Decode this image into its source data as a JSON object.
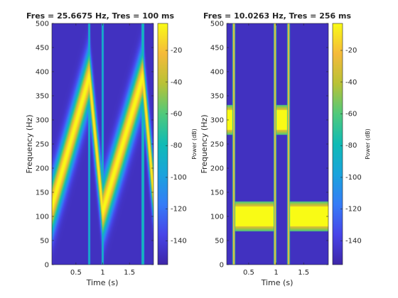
{
  "chart_data": [
    {
      "type": "heatmap",
      "title": "Fres = 25.6675 Hz, Tres = 100 ms",
      "xlabel": "Time (s)",
      "ylabel": "Frequency (Hz)",
      "xlim": [
        0.05,
        1.95
      ],
      "ylim": [
        0,
        500
      ],
      "xticks": [
        "0.5",
        "1",
        "1.5"
      ],
      "xtick_values": [
        0.5,
        1,
        1.5
      ],
      "yticks": [
        "0",
        "50",
        "100",
        "150",
        "200",
        "250",
        "300",
        "350",
        "400",
        "450",
        "500"
      ],
      "ytick_values": [
        0,
        50,
        100,
        150,
        200,
        250,
        300,
        350,
        400,
        450,
        500
      ],
      "colorbar": {
        "label": "Power (dB)",
        "range": [
          -155,
          -3
        ],
        "ticks": [
          "-20",
          "-40",
          "-60",
          "-80",
          "-100",
          "-120",
          "-140"
        ],
        "tick_values": [
          -20,
          -40,
          -60,
          -80,
          -100,
          -120,
          -140
        ]
      },
      "signal": {
        "description_kind": "chirp",
        "ridges": [
          {
            "t0": 0.05,
            "t1": 0.75,
            "f0": 120,
            "f1": 390,
            "halfwidth_hz": 70
          },
          {
            "t0": 0.75,
            "t1": 1.0,
            "f0": 390,
            "f1": 110,
            "halfwidth_hz": 70
          },
          {
            "t0": 1.0,
            "t1": 1.75,
            "f0": 110,
            "f1": 390,
            "halfwidth_hz": 70
          },
          {
            "t0": 1.75,
            "t1": 1.95,
            "f0": 390,
            "f1": 150,
            "halfwidth_hz": 70
          }
        ],
        "broadband_times": [
          0.75,
          1.0,
          1.75
        ],
        "background_db": -148
      }
    },
    {
      "type": "heatmap",
      "title": "Fres = 10.0263 Hz, Tres = 256 ms",
      "xlabel": "Time (s)",
      "ylabel": "Frequency (Hz)",
      "xlim": [
        0.1,
        1.95
      ],
      "ylim": [
        0,
        500
      ],
      "xticks": [
        "0.5",
        "1",
        "1.5"
      ],
      "xtick_values": [
        0.5,
        1,
        1.5
      ],
      "yticks": [
        "0",
        "50",
        "100",
        "150",
        "200",
        "250",
        "300",
        "350",
        "400",
        "450",
        "500"
      ],
      "ytick_values": [
        0,
        50,
        100,
        150,
        200,
        250,
        300,
        350,
        400,
        450,
        500
      ],
      "colorbar": {
        "label": "Power (dB)",
        "range": [
          -155,
          -3
        ],
        "ticks": [
          "-20",
          "-40",
          "-60",
          "-80",
          "-100",
          "-120",
          "-140"
        ],
        "tick_values": [
          -20,
          -40,
          -60,
          -80,
          -100,
          -120,
          -140
        ]
      },
      "signal": {
        "description_kind": "tones",
        "tones": [
          {
            "t0": 0.1,
            "t1": 0.2,
            "f": 300,
            "halfwidth_hz": 25
          },
          {
            "t0": 0.25,
            "t1": 0.95,
            "f": 100,
            "halfwidth_hz": 25
          },
          {
            "t0": 1.0,
            "t1": 1.2,
            "f": 300,
            "halfwidth_hz": 25
          },
          {
            "t0": 1.25,
            "t1": 1.95,
            "f": 100,
            "halfwidth_hz": 25
          }
        ],
        "broadband_bands": [
          {
            "t0": 0.2,
            "t1": 0.25
          },
          {
            "t0": 0.95,
            "t1": 1.0
          },
          {
            "t0": 1.2,
            "t1": 1.25
          }
        ],
        "background_db": -148
      }
    }
  ]
}
